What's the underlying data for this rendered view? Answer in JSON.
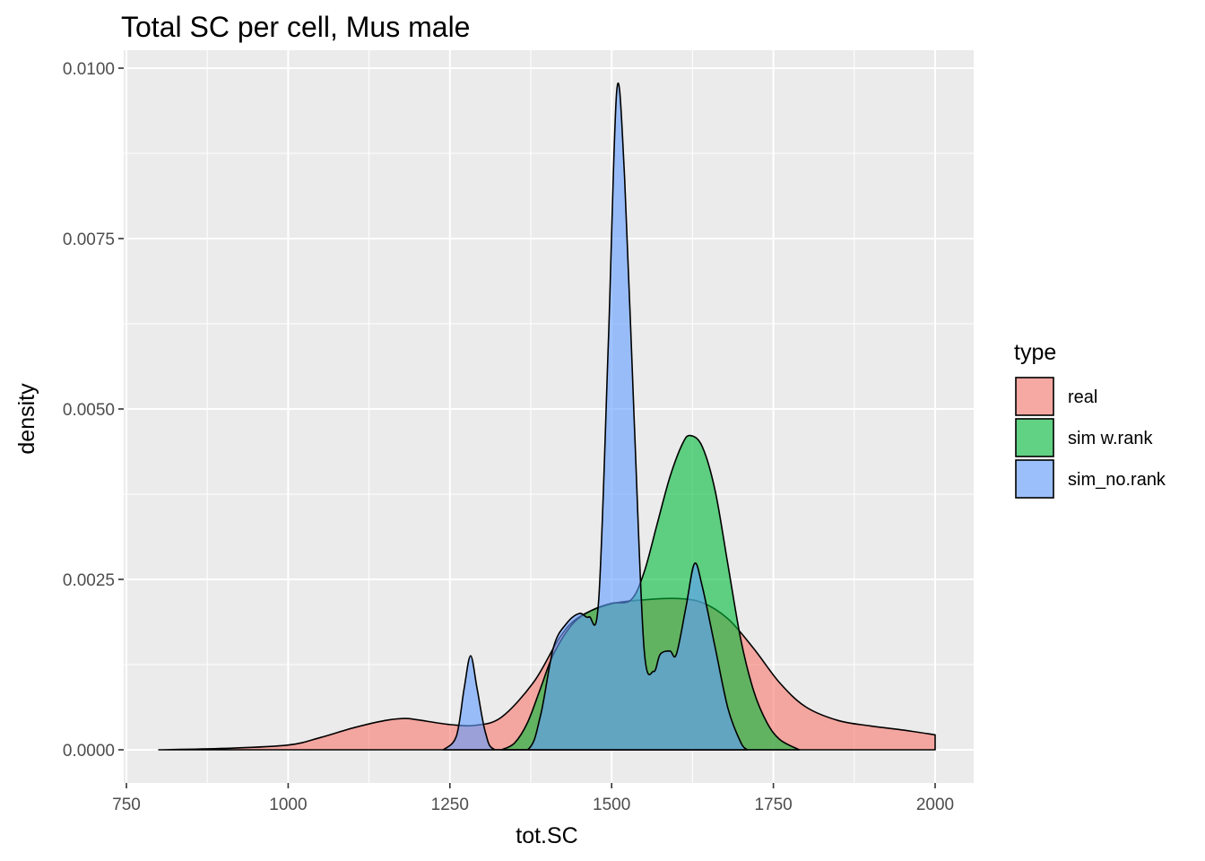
{
  "chart_data": {
    "type": "area",
    "subtype": "density",
    "title": "Total SC per cell, Mus male",
    "xlabel": "tot.SC",
    "ylabel": "density",
    "xlim": [
      750,
      2000
    ],
    "ylim": [
      0,
      0.01
    ],
    "x_ticks": [
      750,
      1000,
      1250,
      1500,
      1750,
      2000
    ],
    "x_tick_labels": [
      "750",
      "1000",
      "1250",
      "1500",
      "1750",
      "2000"
    ],
    "y_ticks": [
      0,
      0.0025,
      0.005,
      0.0075,
      0.01
    ],
    "y_tick_labels": [
      "0.0000",
      "0.0025",
      "0.0050",
      "0.0075",
      "0.0100"
    ],
    "grid": true,
    "legend": {
      "title": "type",
      "position": "right"
    },
    "series": [
      {
        "name": "real",
        "color": "#F8766D",
        "points": [
          [
            800,
            0
          ],
          [
            900,
            2e-05
          ],
          [
            1000,
            7e-05
          ],
          [
            1050,
            0.00018
          ],
          [
            1100,
            0.00032
          ],
          [
            1150,
            0.00043
          ],
          [
            1180,
            0.00046
          ],
          [
            1200,
            0.00044
          ],
          [
            1250,
            0.00037
          ],
          [
            1290,
            0.00036
          ],
          [
            1330,
            0.00048
          ],
          [
            1380,
            0.001
          ],
          [
            1420,
            0.00165
          ],
          [
            1450,
            0.00195
          ],
          [
            1500,
            0.00214
          ],
          [
            1550,
            0.0022
          ],
          [
            1600,
            0.00222
          ],
          [
            1640,
            0.00216
          ],
          [
            1680,
            0.00192
          ],
          [
            1720,
            0.00148
          ],
          [
            1760,
            0.00098
          ],
          [
            1800,
            0.00063
          ],
          [
            1850,
            0.00043
          ],
          [
            1900,
            0.00035
          ],
          [
            1950,
            0.00029
          ],
          [
            2000,
            0.00022
          ]
        ]
      },
      {
        "name": "sim w.rank",
        "color": "#00BA38",
        "points": [
          [
            1330,
            0
          ],
          [
            1350,
            0.0001
          ],
          [
            1370,
            0.0004
          ],
          [
            1390,
            0.0009
          ],
          [
            1410,
            0.0014
          ],
          [
            1440,
            0.00185
          ],
          [
            1470,
            0.00205
          ],
          [
            1500,
            0.00215
          ],
          [
            1530,
            0.0022
          ],
          [
            1550,
            0.0026
          ],
          [
            1570,
            0.0033
          ],
          [
            1590,
            0.004
          ],
          [
            1610,
            0.0045
          ],
          [
            1622,
            0.00461
          ],
          [
            1640,
            0.00445
          ],
          [
            1660,
            0.0038
          ],
          [
            1680,
            0.0027
          ],
          [
            1700,
            0.0016
          ],
          [
            1720,
            0.00085
          ],
          [
            1740,
            0.0004
          ],
          [
            1760,
            0.00015
          ],
          [
            1790,
            0
          ]
        ]
      },
      {
        "name": "sim_no.rank",
        "color": "#619CFF",
        "points": [
          [
            1240,
            0
          ],
          [
            1260,
            0.0002
          ],
          [
            1272,
            0.0009
          ],
          [
            1282,
            0.00138
          ],
          [
            1292,
            0.0009
          ],
          [
            1305,
            0.00025
          ],
          [
            1320,
            0
          ],
          [
            1370,
            0
          ],
          [
            1390,
            0.0005
          ],
          [
            1410,
            0.0015
          ],
          [
            1430,
            0.00185
          ],
          [
            1450,
            0.002
          ],
          [
            1465,
            0.00195
          ],
          [
            1480,
            0.0022
          ],
          [
            1495,
            0.006
          ],
          [
            1508,
            0.00968
          ],
          [
            1520,
            0.0084
          ],
          [
            1535,
            0.0048
          ],
          [
            1550,
            0.0015
          ],
          [
            1565,
            0.00115
          ],
          [
            1575,
            0.0014
          ],
          [
            1590,
            0.00145
          ],
          [
            1600,
            0.0014
          ],
          [
            1615,
            0.0021
          ],
          [
            1628,
            0.00273
          ],
          [
            1640,
            0.0024
          ],
          [
            1660,
            0.0015
          ],
          [
            1680,
            0.0006
          ],
          [
            1700,
            0.0001
          ],
          [
            1710,
            0
          ]
        ]
      }
    ]
  }
}
